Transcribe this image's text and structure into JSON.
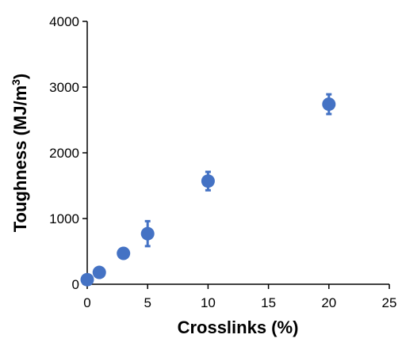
{
  "chart_data": {
    "type": "scatter",
    "title": "",
    "xlabel": "Crosslinks (%)",
    "ylabel_main": "Toughness (MJ/m",
    "ylabel_sup": "3",
    "ylabel_close": ")",
    "xlim": [
      0,
      25
    ],
    "ylim": [
      0,
      4000
    ],
    "xticks": [
      0,
      5,
      10,
      15,
      20,
      25
    ],
    "yticks": [
      0,
      1000,
      2000,
      3000,
      4000
    ],
    "grid": false,
    "legend": "none",
    "marker_color": "#4472C4",
    "series": [
      {
        "points": [
          {
            "x": 0,
            "y": 70,
            "err": 0
          },
          {
            "x": 1,
            "y": 180,
            "err": 0
          },
          {
            "x": 3,
            "y": 470,
            "err": 0
          },
          {
            "x": 5,
            "y": 770,
            "err": 190
          },
          {
            "x": 10,
            "y": 1570,
            "err": 140
          },
          {
            "x": 20,
            "y": 2740,
            "err": 150
          }
        ]
      }
    ]
  }
}
